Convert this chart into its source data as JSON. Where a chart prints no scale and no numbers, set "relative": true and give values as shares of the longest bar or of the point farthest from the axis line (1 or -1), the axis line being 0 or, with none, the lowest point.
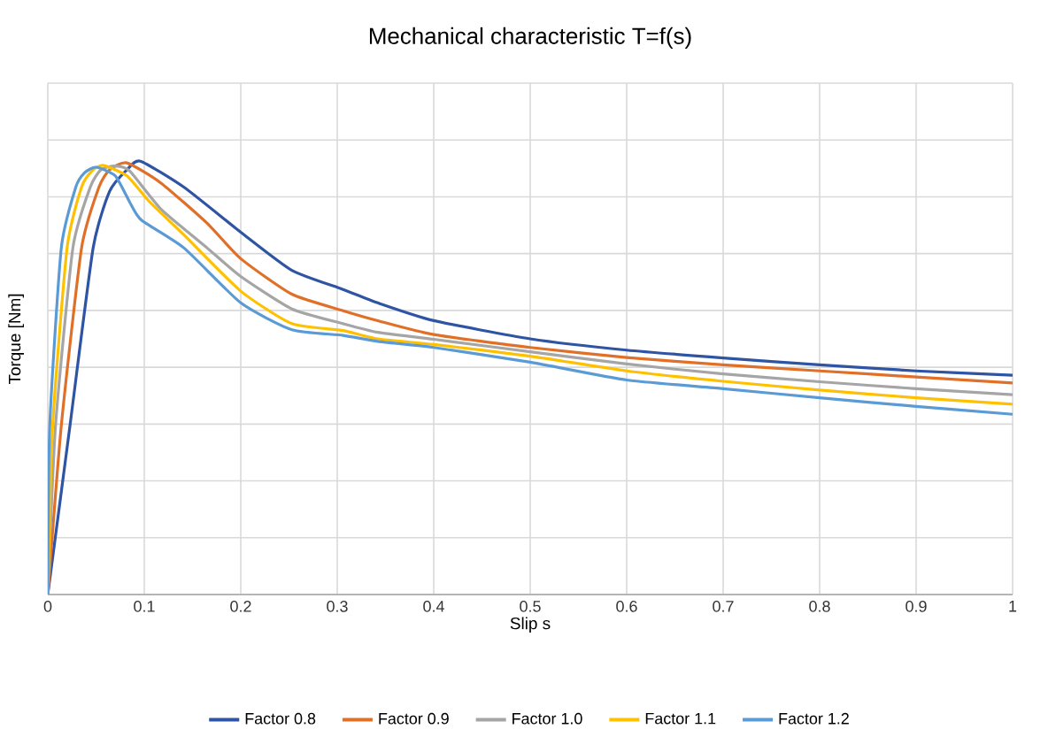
{
  "chart_data": {
    "type": "line",
    "title": "Mechanical characteristic T=f(s)",
    "xlabel": "Slip s",
    "ylabel": "Torque [Nm]",
    "relative": true,
    "xlim": [
      0,
      1
    ],
    "xticks": [
      0,
      0.1,
      0.2,
      0.3,
      0.4,
      0.5,
      0.6,
      0.7,
      0.8,
      0.9,
      1
    ],
    "grid": true,
    "legend": "bottom",
    "marker": "none",
    "line_style": "solid",
    "series": [
      {
        "name": "Factor 0.8",
        "color": "#2e54a3",
        "x": [
          0,
          0.023,
          0.047,
          0.064,
          0.082,
          0.096,
          0.141,
          0.2,
          0.253,
          0.306,
          0.342,
          0.4,
          0.5,
          0.6,
          0.7,
          0.8,
          0.9,
          1.0
        ],
        "values": [
          0,
          0.39,
          0.8,
          0.93,
          0.98,
          1.0,
          0.94,
          0.836,
          0.748,
          0.704,
          0.673,
          0.632,
          0.59,
          0.564,
          0.546,
          0.53,
          0.516,
          0.506
        ]
      },
      {
        "name": "Factor 0.9",
        "color": "#e07028",
        "x": [
          0,
          0.014,
          0.035,
          0.053,
          0.064,
          0.082,
          0.117,
          0.165,
          0.2,
          0.253,
          0.306,
          0.342,
          0.4,
          0.5,
          0.6,
          0.7,
          0.8,
          0.9,
          1.0
        ],
        "values": [
          0,
          0.39,
          0.8,
          0.94,
          0.98,
          0.996,
          0.95,
          0.857,
          0.775,
          0.693,
          0.655,
          0.632,
          0.6,
          0.57,
          0.547,
          0.53,
          0.516,
          0.502,
          0.488
        ]
      },
      {
        "name": "Factor 1.0",
        "color": "#a5a5a5",
        "x": [
          0,
          0.008,
          0.026,
          0.044,
          0.055,
          0.07,
          0.085,
          0.117,
          0.165,
          0.2,
          0.253,
          0.306,
          0.342,
          0.4,
          0.5,
          0.6,
          0.7,
          0.8,
          0.9,
          1.0
        ],
        "values": [
          0,
          0.39,
          0.8,
          0.94,
          0.98,
          0.989,
          0.977,
          0.89,
          0.8,
          0.734,
          0.659,
          0.625,
          0.605,
          0.589,
          0.56,
          0.532,
          0.509,
          0.491,
          0.475,
          0.461
        ]
      },
      {
        "name": "Factor 1.1",
        "color": "#ffc000",
        "x": [
          0,
          0.005,
          0.02,
          0.035,
          0.047,
          0.058,
          0.082,
          0.106,
          0.141,
          0.2,
          0.253,
          0.306,
          0.342,
          0.4,
          0.5,
          0.6,
          0.7,
          0.8,
          0.9,
          1.0
        ],
        "values": [
          0,
          0.39,
          0.8,
          0.94,
          0.98,
          0.99,
          0.966,
          0.905,
          0.83,
          0.7,
          0.625,
          0.609,
          0.59,
          0.577,
          0.55,
          0.516,
          0.492,
          0.472,
          0.454,
          0.439
        ]
      },
      {
        "name": "Factor 1.2",
        "color": "#5b9bd5",
        "x": [
          0,
          0.002,
          0.014,
          0.029,
          0.038,
          0.05,
          0.07,
          0.085,
          0.097,
          0.141,
          0.2,
          0.253,
          0.306,
          0.342,
          0.4,
          0.5,
          0.6,
          0.7,
          0.8,
          0.9,
          1.0
        ],
        "values": [
          0,
          0.39,
          0.8,
          0.94,
          0.973,
          0.986,
          0.966,
          0.905,
          0.864,
          0.8,
          0.673,
          0.611,
          0.598,
          0.584,
          0.57,
          0.536,
          0.495,
          0.475,
          0.454,
          0.434,
          0.416
        ]
      }
    ]
  }
}
